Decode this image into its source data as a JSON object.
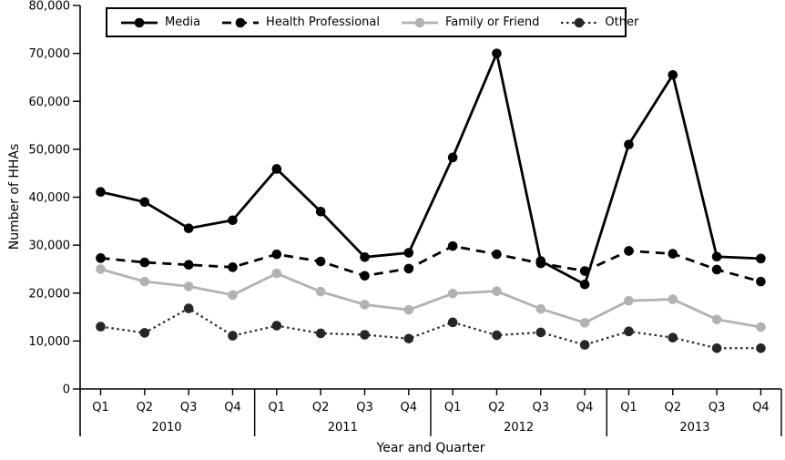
{
  "chart_data": {
    "type": "line",
    "title": "",
    "xlabel": "Year and Quarter",
    "ylabel": "Number of HHAs",
    "ylim": [
      0,
      80000
    ],
    "ytick_interval": 10000,
    "ytick_labels": [
      "0",
      "10,000",
      "20,000",
      "30,000",
      "40,000",
      "50,000",
      "60,000",
      "70,000",
      "80,000"
    ],
    "grid": false,
    "legend_position": "top",
    "x_groups": [
      {
        "year": "2010",
        "quarters": [
          "Q1",
          "Q2",
          "Q3",
          "Q4"
        ]
      },
      {
        "year": "2011",
        "quarters": [
          "Q1",
          "Q2",
          "Q3",
          "Q4"
        ]
      },
      {
        "year": "2012",
        "quarters": [
          "Q1",
          "Q2",
          "Q3",
          "Q4"
        ]
      },
      {
        "year": "2013",
        "quarters": [
          "Q1",
          "Q2",
          "Q3",
          "Q4"
        ]
      }
    ],
    "series": [
      {
        "name": "Media",
        "color": "#000000",
        "line_style": "solid",
        "marker": "circle",
        "values": [
          41100,
          39000,
          33500,
          35200,
          45900,
          37000,
          27500,
          28400,
          48300,
          70000,
          26700,
          21800,
          51000,
          65500,
          27600,
          27200
        ]
      },
      {
        "name": "Health Professional",
        "color": "#000000",
        "line_style": "dashed",
        "marker": "circle",
        "values": [
          27300,
          26400,
          25900,
          25400,
          28100,
          26600,
          23600,
          25100,
          29800,
          28100,
          26200,
          24600,
          28800,
          28200,
          24900,
          22400
        ]
      },
      {
        "name": "Family or Friend",
        "color": "#b2b2b2",
        "line_style": "solid",
        "marker": "circle",
        "values": [
          25000,
          22400,
          21400,
          19600,
          24100,
          20300,
          17600,
          16500,
          19900,
          20400,
          16700,
          13800,
          18400,
          18700,
          14500,
          12900
        ]
      },
      {
        "name": "Other",
        "color": "#262626",
        "line_style": "dotted",
        "marker": "circle",
        "values": [
          13000,
          11700,
          16800,
          11100,
          13200,
          11600,
          11300,
          10500,
          13900,
          11200,
          11800,
          9200,
          12000,
          10700,
          8500,
          8500
        ]
      }
    ]
  }
}
